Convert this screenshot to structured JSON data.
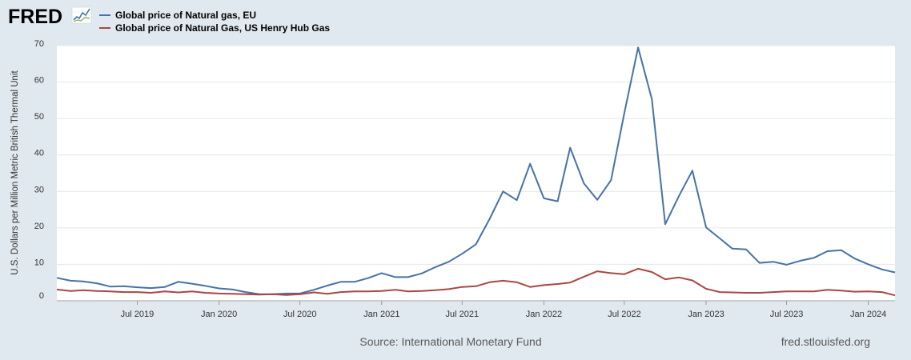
{
  "logo": {
    "text": "FRED",
    "icon": "fred-chart-icon"
  },
  "colors": {
    "eu": "#4572a7",
    "us": "#aa4643",
    "plot_bg": "#ffffff",
    "page_bg": "#e1e9f0",
    "grid": "#e6e6e6"
  },
  "footer": {
    "source": "Source: International Monetary Fund",
    "site": "fred.stlouisfed.org"
  },
  "chart_data": {
    "type": "line",
    "ylabel": "U.S. Dollars per Million Metric British Thermal Unit",
    "xlabel": "",
    "ylim": [
      0,
      70
    ],
    "yticks": [
      0,
      10,
      20,
      30,
      40,
      50,
      60,
      70
    ],
    "xlim": [
      "2019-01-01",
      "2024-03-01"
    ],
    "xticks": [
      {
        "date": "2019-07-01",
        "label": "Jul 2019"
      },
      {
        "date": "2020-01-01",
        "label": "Jan 2020"
      },
      {
        "date": "2020-07-01",
        "label": "Jul 2020"
      },
      {
        "date": "2021-01-01",
        "label": "Jan 2021"
      },
      {
        "date": "2021-07-01",
        "label": "Jul 2021"
      },
      {
        "date": "2022-01-01",
        "label": "Jan 2022"
      },
      {
        "date": "2022-07-01",
        "label": "Jul 2022"
      },
      {
        "date": "2023-01-01",
        "label": "Jan 2023"
      },
      {
        "date": "2023-07-01",
        "label": "Jul 2023"
      },
      {
        "date": "2024-01-01",
        "label": "Jan 2024"
      }
    ],
    "grid": true,
    "legend": "top-left",
    "x": [
      "2019-01-01",
      "2019-02-01",
      "2019-03-01",
      "2019-04-01",
      "2019-05-01",
      "2019-06-01",
      "2019-07-01",
      "2019-08-01",
      "2019-09-01",
      "2019-10-01",
      "2019-11-01",
      "2019-12-01",
      "2020-01-01",
      "2020-02-01",
      "2020-03-01",
      "2020-04-01",
      "2020-05-01",
      "2020-06-01",
      "2020-07-01",
      "2020-08-01",
      "2020-09-01",
      "2020-10-01",
      "2020-11-01",
      "2020-12-01",
      "2021-01-01",
      "2021-02-01",
      "2021-03-01",
      "2021-04-01",
      "2021-05-01",
      "2021-06-01",
      "2021-07-01",
      "2021-08-01",
      "2021-09-01",
      "2021-10-01",
      "2021-11-01",
      "2021-12-01",
      "2022-01-01",
      "2022-02-01",
      "2022-03-01",
      "2022-04-01",
      "2022-05-01",
      "2022-06-01",
      "2022-07-01",
      "2022-08-01",
      "2022-09-01",
      "2022-10-01",
      "2022-11-01",
      "2022-12-01",
      "2023-01-01",
      "2023-02-01",
      "2023-03-01",
      "2023-04-01",
      "2023-05-01",
      "2023-06-01",
      "2023-07-01",
      "2023-08-01",
      "2023-09-01",
      "2023-10-01",
      "2023-11-01",
      "2023-12-01",
      "2024-01-01",
      "2024-02-01",
      "2024-03-01"
    ],
    "series": [
      {
        "name": "Global price of Natural gas, EU",
        "color": "#4572a7",
        "values": [
          6.3,
          5.5,
          5.3,
          4.8,
          3.9,
          4.0,
          3.7,
          3.5,
          3.8,
          5.2,
          4.7,
          4.1,
          3.4,
          3.1,
          2.4,
          1.8,
          1.8,
          2.0,
          2.0,
          3.0,
          4.2,
          5.2,
          5.2,
          6.2,
          7.6,
          6.5,
          6.5,
          7.5,
          9.2,
          10.7,
          12.9,
          15.5,
          22.5,
          30.0,
          27.6,
          37.6,
          28.1,
          27.3,
          42.0,
          32.2,
          27.7,
          33.1,
          51.5,
          69.5,
          55.3,
          21.0,
          28.8,
          35.7,
          20.1,
          17.1,
          14.3,
          14.1,
          10.4,
          10.7,
          9.9,
          11.0,
          11.8,
          13.6,
          13.9,
          11.6,
          10.0,
          8.6,
          7.8
        ]
      },
      {
        "name": "Global price of Natural Gas, US Henry Hub Gas",
        "color": "#aa4643",
        "values": [
          3.1,
          2.7,
          2.9,
          2.7,
          2.6,
          2.4,
          2.4,
          2.2,
          2.6,
          2.3,
          2.6,
          2.2,
          2.0,
          1.9,
          1.8,
          1.7,
          1.8,
          1.6,
          1.8,
          2.3,
          1.9,
          2.4,
          2.6,
          2.6,
          2.7,
          3.0,
          2.6,
          2.7,
          2.9,
          3.2,
          3.8,
          4.0,
          5.1,
          5.5,
          5.1,
          3.8,
          4.3,
          4.6,
          5.0,
          6.6,
          8.1,
          7.6,
          7.3,
          8.8,
          7.9,
          5.9,
          6.4,
          5.6,
          3.3,
          2.4,
          2.3,
          2.2,
          2.2,
          2.4,
          2.6,
          2.6,
          2.6,
          3.0,
          2.8,
          2.5,
          2.6,
          2.4,
          1.5
        ]
      }
    ]
  }
}
